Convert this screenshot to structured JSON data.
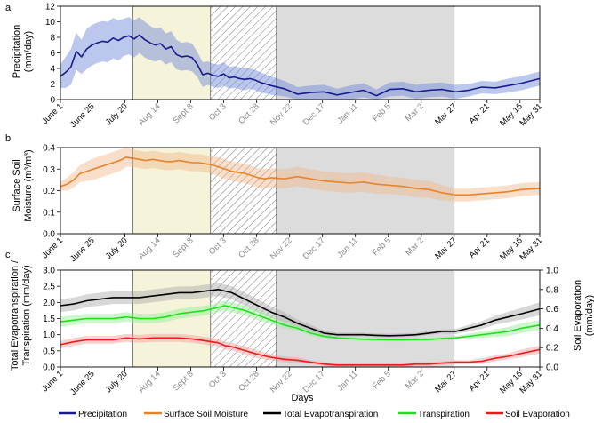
{
  "chart_data": [
    {
      "type": "line",
      "panel_letter": "a",
      "ylabel_lines": [
        "Precipitation",
        "(mm/day)"
      ],
      "ylim": [
        0,
        12
      ],
      "yticks": [
        0,
        2,
        4,
        6,
        8,
        10,
        12
      ],
      "x_tick_labels": [
        "June 1",
        "June 25",
        "July 20",
        "Aug 14",
        "Sept 8",
        "Oct 3",
        "Oct 28",
        "Nov 22",
        "Dec 17",
        "Jan 11",
        "Feb 5",
        "Mar 2",
        "Mar 27",
        "Apr 21",
        "May 16",
        "May 31"
      ],
      "x_tick_days": [
        0,
        24,
        49,
        74,
        99,
        124,
        149,
        174,
        199,
        224,
        249,
        274,
        299,
        324,
        349,
        364
      ],
      "x_range_days": [
        0,
        364
      ],
      "series": [
        {
          "name": "Precipitation",
          "color": "#1a1a8c",
          "band_color": "#6b82d8",
          "x": [
            0,
            4,
            8,
            12,
            16,
            20,
            24,
            28,
            32,
            36,
            40,
            44,
            48,
            52,
            56,
            60,
            64,
            68,
            72,
            76,
            80,
            84,
            88,
            92,
            96,
            100,
            104,
            108,
            112,
            116,
            120,
            124,
            128,
            132,
            136,
            140,
            144,
            148,
            152,
            156,
            160,
            170,
            180,
            190,
            200,
            210,
            220,
            230,
            240,
            250,
            260,
            270,
            280,
            290,
            300,
            310,
            320,
            330,
            340,
            350,
            364
          ],
          "y": [
            3.0,
            3.5,
            4.2,
            6.2,
            5.5,
            6.5,
            7.0,
            7.3,
            7.5,
            7.4,
            7.9,
            7.6,
            8.0,
            8.2,
            7.8,
            8.3,
            7.7,
            7.3,
            7.0,
            7.2,
            6.5,
            6.8,
            5.8,
            5.5,
            5.6,
            5.4,
            4.5,
            3.2,
            3.4,
            3.1,
            3.0,
            3.3,
            2.8,
            2.9,
            2.7,
            2.6,
            2.7,
            2.5,
            2.2,
            2.0,
            1.8,
            1.4,
            0.7,
            0.9,
            1.0,
            0.6,
            0.9,
            1.2,
            0.5,
            1.3,
            1.4,
            1.0,
            1.2,
            1.3,
            1.0,
            1.2,
            1.6,
            1.5,
            1.8,
            2.1,
            2.7
          ],
          "band": [
            1.5,
            2.0,
            2.3,
            2.4,
            2.2,
            2.6,
            2.6,
            2.6,
            2.6,
            2.6,
            2.6,
            2.6,
            2.4,
            2.4,
            2.4,
            2.3,
            2.3,
            2.2,
            2.1,
            2.1,
            2.0,
            2.0,
            1.9,
            1.8,
            1.8,
            1.8,
            1.6,
            1.6,
            1.5,
            1.5,
            1.5,
            1.5,
            1.4,
            1.4,
            1.4,
            1.4,
            1.3,
            1.3,
            1.3,
            1.2,
            1.2,
            1.0,
            0.9,
            0.9,
            0.9,
            0.8,
            0.9,
            0.9,
            0.8,
            0.9,
            0.9,
            0.9,
            0.9,
            0.9,
            0.9,
            0.8,
            0.8,
            0.8,
            0.9,
            0.9,
            0.9
          ]
        }
      ]
    },
    {
      "type": "line",
      "panel_letter": "b",
      "ylabel_lines": [
        "Surface Soil",
        "Moisture (m³/m³)"
      ],
      "ylim": [
        0,
        0.4
      ],
      "yticks": [
        0,
        0.1,
        0.2,
        0.3,
        0.4
      ],
      "ytick_labels": [
        "0.0",
        "0.1",
        "0.2",
        "0.3",
        "0.4"
      ],
      "x_tick_labels": [
        "June 1",
        "June 25",
        "July 20",
        "Aug 14",
        "Sept 8",
        "Oct 3",
        "Oct 28",
        "Nov 22",
        "Dec 17",
        "Jan 11",
        "Feb 5",
        "Mar 2",
        "Mar 27",
        "Apr 21",
        "May 16",
        "May 31"
      ],
      "x_tick_days": [
        0,
        24,
        49,
        74,
        99,
        124,
        149,
        174,
        199,
        224,
        249,
        274,
        299,
        324,
        349,
        364
      ],
      "x_range_days": [
        0,
        364
      ],
      "series": [
        {
          "name": "Surface Soil Moisture",
          "color": "#e8832a",
          "band_color": "#f2b98a",
          "x": [
            0,
            5,
            10,
            15,
            20,
            25,
            30,
            35,
            40,
            45,
            50,
            55,
            60,
            65,
            70,
            75,
            80,
            85,
            90,
            95,
            100,
            105,
            110,
            115,
            120,
            125,
            130,
            135,
            140,
            145,
            150,
            155,
            160,
            170,
            180,
            190,
            200,
            210,
            220,
            230,
            240,
            250,
            260,
            270,
            280,
            290,
            300,
            310,
            320,
            330,
            340,
            350,
            364
          ],
          "y": [
            0.22,
            0.23,
            0.25,
            0.28,
            0.29,
            0.3,
            0.31,
            0.32,
            0.33,
            0.34,
            0.355,
            0.35,
            0.345,
            0.34,
            0.345,
            0.34,
            0.335,
            0.335,
            0.34,
            0.335,
            0.33,
            0.33,
            0.325,
            0.32,
            0.31,
            0.3,
            0.29,
            0.285,
            0.28,
            0.27,
            0.26,
            0.255,
            0.26,
            0.255,
            0.265,
            0.255,
            0.245,
            0.24,
            0.235,
            0.24,
            0.23,
            0.225,
            0.22,
            0.21,
            0.205,
            0.19,
            0.18,
            0.18,
            0.185,
            0.19,
            0.195,
            0.205,
            0.21
          ],
          "band": [
            0.02,
            0.03,
            0.035,
            0.04,
            0.045,
            0.05,
            0.05,
            0.05,
            0.05,
            0.05,
            0.045,
            0.04,
            0.04,
            0.04,
            0.04,
            0.04,
            0.04,
            0.04,
            0.04,
            0.04,
            0.04,
            0.04,
            0.04,
            0.04,
            0.045,
            0.045,
            0.045,
            0.045,
            0.045,
            0.045,
            0.045,
            0.045,
            0.045,
            0.045,
            0.045,
            0.045,
            0.045,
            0.045,
            0.045,
            0.045,
            0.045,
            0.04,
            0.04,
            0.04,
            0.04,
            0.035,
            0.03,
            0.03,
            0.03,
            0.03,
            0.03,
            0.03,
            0.03
          ]
        }
      ]
    },
    {
      "type": "line",
      "panel_letter": "c",
      "ylabel_lines": [
        "Total Evapotranspiration /",
        "Transpiration (mm/day)"
      ],
      "y2label_lines": [
        "Soil Evaporation",
        "(mm/day)"
      ],
      "ylim": [
        0,
        3.0
      ],
      "yticks": [
        0,
        0.5,
        1.0,
        1.5,
        2.0,
        2.5,
        3.0
      ],
      "ytick_labels": [
        "0.0",
        "0.5",
        "1.0",
        "1.5",
        "2.0",
        "2.5",
        "3.0"
      ],
      "y2lim": [
        0,
        1.0
      ],
      "y2ticks": [
        0,
        0.2,
        0.4,
        0.6,
        0.8,
        1.0
      ],
      "y2tick_labels": [
        "0.0",
        "0.2",
        "0.4",
        "0.6",
        "0.8",
        "1.0"
      ],
      "x_tick_labels": [
        "June 1",
        "June 25",
        "July 20",
        "Aug 14",
        "Sept 8",
        "Oct 3",
        "Oct 28",
        "Nov 22",
        "Dec 17",
        "Jan 11",
        "Feb 5",
        "Mar 2",
        "Mar 27",
        "Apr 21",
        "May 16",
        "May 31"
      ],
      "x_tick_days": [
        0,
        24,
        49,
        74,
        99,
        124,
        149,
        174,
        199,
        224,
        249,
        274,
        299,
        324,
        349,
        364
      ],
      "x_range_days": [
        0,
        364
      ],
      "xlabel": "Days",
      "series": [
        {
          "name": "Total Evapotranspiration",
          "axis": "left",
          "color": "#000000",
          "band_color": "#a8a8a8",
          "x": [
            0,
            10,
            20,
            30,
            40,
            50,
            60,
            70,
            80,
            90,
            100,
            110,
            120,
            125,
            130,
            140,
            150,
            160,
            170,
            180,
            190,
            200,
            210,
            220,
            230,
            240,
            250,
            260,
            270,
            280,
            290,
            300,
            310,
            320,
            330,
            340,
            350,
            364
          ],
          "y": [
            1.9,
            1.95,
            2.05,
            2.1,
            2.15,
            2.15,
            2.15,
            2.2,
            2.25,
            2.3,
            2.3,
            2.35,
            2.4,
            2.35,
            2.3,
            2.1,
            1.9,
            1.7,
            1.55,
            1.35,
            1.2,
            1.05,
            1.0,
            1.0,
            1.0,
            0.98,
            0.97,
            0.98,
            1.0,
            1.05,
            1.1,
            1.1,
            1.2,
            1.3,
            1.45,
            1.55,
            1.65,
            1.8
          ],
          "band": [
            0.2,
            0.2,
            0.2,
            0.2,
            0.2,
            0.2,
            0.2,
            0.2,
            0.2,
            0.2,
            0.2,
            0.2,
            0.2,
            0.2,
            0.2,
            0.2,
            0.2,
            0.18,
            0.15,
            0.12,
            0.1,
            0.08,
            0.06,
            0.06,
            0.06,
            0.06,
            0.06,
            0.06,
            0.06,
            0.06,
            0.06,
            0.08,
            0.1,
            0.12,
            0.14,
            0.16,
            0.18,
            0.2
          ]
        },
        {
          "name": "Transpiration",
          "axis": "left",
          "color": "#1ee01e",
          "band_color": "#8ef08e",
          "x": [
            0,
            10,
            20,
            30,
            40,
            50,
            60,
            70,
            80,
            90,
            100,
            110,
            120,
            125,
            130,
            140,
            150,
            160,
            170,
            180,
            190,
            200,
            210,
            220,
            230,
            240,
            250,
            260,
            270,
            280,
            290,
            300,
            310,
            320,
            330,
            340,
            350,
            364
          ],
          "y": [
            1.4,
            1.45,
            1.5,
            1.5,
            1.5,
            1.55,
            1.5,
            1.5,
            1.55,
            1.65,
            1.7,
            1.75,
            1.85,
            1.9,
            1.85,
            1.75,
            1.6,
            1.45,
            1.3,
            1.2,
            1.05,
            0.95,
            0.9,
            0.88,
            0.86,
            0.85,
            0.84,
            0.84,
            0.85,
            0.85,
            0.88,
            0.9,
            0.95,
            1.0,
            1.05,
            1.1,
            1.2,
            1.3
          ],
          "band": [
            0.15,
            0.15,
            0.15,
            0.15,
            0.15,
            0.15,
            0.15,
            0.15,
            0.15,
            0.15,
            0.15,
            0.15,
            0.15,
            0.15,
            0.15,
            0.15,
            0.15,
            0.13,
            0.1,
            0.08,
            0.07,
            0.06,
            0.05,
            0.05,
            0.05,
            0.05,
            0.05,
            0.05,
            0.05,
            0.05,
            0.05,
            0.06,
            0.08,
            0.1,
            0.12,
            0.14,
            0.15,
            0.15
          ]
        },
        {
          "name": "Soil Evaporation",
          "axis": "right",
          "color": "#e81c1c",
          "band_color": "#f29a9a",
          "x": [
            0,
            10,
            20,
            30,
            40,
            50,
            60,
            70,
            80,
            90,
            100,
            110,
            120,
            125,
            130,
            140,
            150,
            160,
            170,
            180,
            190,
            200,
            210,
            220,
            230,
            240,
            250,
            260,
            270,
            280,
            290,
            300,
            310,
            320,
            330,
            340,
            350,
            364
          ],
          "y": [
            0.23,
            0.26,
            0.28,
            0.28,
            0.28,
            0.3,
            0.29,
            0.3,
            0.3,
            0.3,
            0.29,
            0.27,
            0.25,
            0.22,
            0.21,
            0.17,
            0.13,
            0.1,
            0.08,
            0.07,
            0.05,
            0.03,
            0.02,
            0.02,
            0.02,
            0.02,
            0.02,
            0.02,
            0.03,
            0.03,
            0.04,
            0.05,
            0.05,
            0.06,
            0.09,
            0.11,
            0.14,
            0.18
          ],
          "band": [
            0.04,
            0.04,
            0.04,
            0.04,
            0.04,
            0.04,
            0.04,
            0.04,
            0.04,
            0.04,
            0.04,
            0.04,
            0.04,
            0.04,
            0.04,
            0.04,
            0.04,
            0.03,
            0.03,
            0.03,
            0.02,
            0.02,
            0.02,
            0.02,
            0.02,
            0.02,
            0.02,
            0.02,
            0.02,
            0.02,
            0.02,
            0.02,
            0.02,
            0.03,
            0.03,
            0.03,
            0.04,
            0.04
          ]
        }
      ]
    }
  ],
  "periods": [
    {
      "name": "yellow-period",
      "start_day": 55,
      "end_day": 114,
      "fill": "#f5f3da"
    },
    {
      "name": "hatched-period",
      "start_day": 114,
      "end_day": 164,
      "fill": "hatch"
    },
    {
      "name": "gray-period",
      "start_day": 164,
      "end_day": 299,
      "fill": "#dcdcdc"
    }
  ],
  "faded_tick_range_days": [
    65,
    299
  ],
  "legend": [
    {
      "label": "Precipitation",
      "color": "#1a1a8c"
    },
    {
      "label": "Surface Soil Moisture",
      "color": "#e8832a"
    },
    {
      "label": "Total Evapotranspiration",
      "color": "#000000"
    },
    {
      "label": "Transpiration",
      "color": "#1ee01e"
    },
    {
      "label": "Soil Evaporation",
      "color": "#e81c1c"
    }
  ]
}
